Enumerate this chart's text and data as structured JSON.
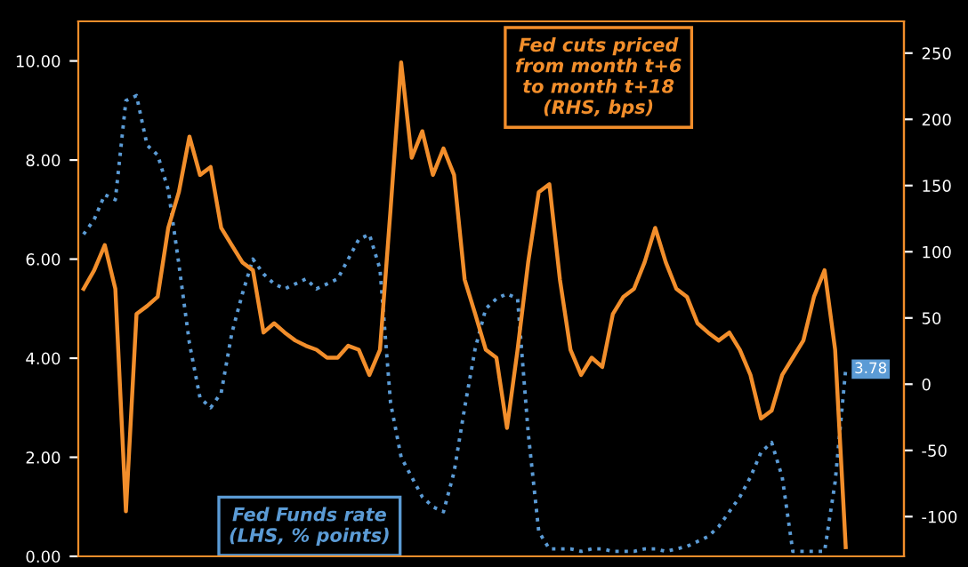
{
  "chart_data": {
    "type": "line",
    "categories": [
      null,
      null,
      null,
      null,
      null,
      null,
      null,
      null,
      null,
      null,
      null,
      null,
      null,
      null,
      null,
      null,
      null,
      null,
      null,
      null,
      null,
      null,
      null,
      null,
      null,
      null,
      null,
      null,
      null,
      null,
      null,
      null,
      null,
      null,
      null,
      null,
      null,
      null,
      null,
      null,
      null,
      null,
      null,
      null,
      null,
      null,
      null,
      null,
      null,
      null,
      null,
      null,
      null,
      null,
      null,
      null,
      null,
      null,
      null,
      null,
      null,
      null,
      null,
      null,
      null,
      null,
      null,
      null,
      null,
      null,
      null,
      null,
      null,
      null,
      null,
      null,
      null,
      null
    ],
    "series": [
      {
        "name": "Fed Funds rate\n(LHS, % points)",
        "color": "#5b9bd5",
        "line_style": "dotted",
        "axis": "y",
        "values": [
          6.5,
          6.8,
          7.3,
          7.2,
          9.2,
          9.3,
          8.3,
          8.1,
          7.4,
          5.9,
          4.3,
          3.2,
          3.0,
          3.3,
          4.5,
          5.3,
          6.0,
          5.7,
          5.5,
          5.4,
          5.5,
          5.6,
          5.4,
          5.5,
          5.6,
          6.0,
          6.4,
          6.5,
          5.8,
          3.1,
          2.0,
          1.6,
          1.2,
          1.0,
          0.9,
          1.7,
          3.0,
          4.2,
          5.0,
          5.2,
          5.3,
          5.2,
          2.5,
          0.5,
          0.15,
          0.15,
          0.15,
          0.1,
          0.15,
          0.15,
          0.1,
          0.1,
          0.1,
          0.15,
          0.15,
          0.1,
          0.15,
          0.2,
          0.3,
          0.4,
          0.6,
          0.9,
          1.2,
          1.6,
          2.1,
          2.3,
          1.6,
          0.1,
          0.1,
          0.1,
          0.1,
          1.5,
          3.78,
          null,
          null,
          null,
          null,
          null
        ],
        "value_labels": [
          null,
          null,
          null,
          null,
          null,
          null,
          null,
          null,
          null,
          null,
          null,
          null,
          null,
          null,
          null,
          null,
          null,
          null,
          null,
          null,
          null,
          null,
          null,
          null,
          null,
          null,
          null,
          null,
          null,
          null,
          null,
          null,
          null,
          null,
          null,
          null,
          null,
          null,
          null,
          null,
          null,
          null,
          null,
          null,
          null,
          null,
          null,
          null,
          null,
          null,
          null,
          null,
          null,
          null,
          null,
          null,
          null,
          null,
          null,
          null,
          null,
          null,
          null,
          null,
          null,
          null,
          null,
          null,
          null,
          null,
          null,
          null,
          "3.78",
          null,
          null,
          null,
          null,
          null
        ]
      },
      {
        "name": "Fed cuts priced\nfrom month t+6\nto month t+18\n(RHS, bps)",
        "color": "#f28e2b",
        "line_style": "solid",
        "axis": "y2",
        "values": [
          72,
          86,
          105,
          72,
          -96,
          53,
          59,
          66,
          118,
          145,
          187,
          158,
          164,
          118,
          105,
          92,
          86,
          39,
          46,
          39,
          33,
          29,
          26,
          20,
          20,
          29,
          26,
          7,
          26,
          132,
          243,
          171,
          191,
          158,
          178,
          158,
          79,
          53,
          26,
          20,
          -33,
          26,
          92,
          145,
          151,
          79,
          26,
          7,
          20,
          13,
          53,
          66,
          72,
          92,
          118,
          92,
          72,
          66,
          46,
          39,
          33,
          39,
          26,
          7,
          -26,
          -20,
          7,
          20,
          33,
          66,
          86,
          26,
          -123,
          null,
          null,
          null,
          null,
          null
        ]
      }
    ],
    "ylim": [
      0,
      10.8
    ],
    "yticks": [
      {
        "value": 0,
        "label": "0.00"
      },
      {
        "value": 2,
        "label": "2.00"
      },
      {
        "value": 4,
        "label": "4.00"
      },
      {
        "value": 6,
        "label": "6.00"
      },
      {
        "value": 8,
        "label": "8.00"
      },
      {
        "value": 10,
        "label": "10.00"
      }
    ],
    "y2lim": [
      -130,
      274
    ],
    "y2ticks": [
      -100,
      -50,
      0,
      50,
      100,
      150,
      200,
      250
    ],
    "tick_labels": "y",
    "legend": false,
    "grid": false
  }
}
